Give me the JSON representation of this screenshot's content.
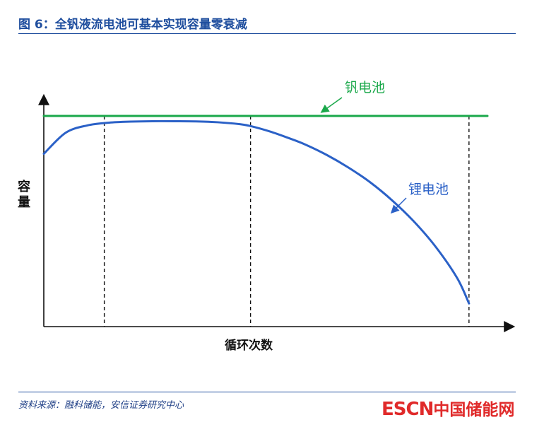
{
  "header": {
    "title": "图 6：全钒液流电池可基本实现容量零衰减"
  },
  "footer": {
    "source": "资料来源：融科储能，安信证券研究中心",
    "logo_en": "ESCN",
    "logo_cn": "中国储能网"
  },
  "colors": {
    "title": "#1f4e9e",
    "vanadium": "#1aa84a",
    "lithium": "#2b61c7",
    "logo": "#e02a2a"
  },
  "chart_data": {
    "type": "line",
    "title": "",
    "xlabel": "循环次数",
    "ylabel": "容量",
    "ticks_shown": false,
    "grid": false,
    "legend": "none",
    "x_markers": [
      0.139,
      0.475,
      0.977
    ],
    "xlim": [
      0,
      1
    ],
    "ylim": [
      0,
      1
    ],
    "series": [
      {
        "name": "钒电池",
        "color": "#1aa84a",
        "x": [
          0,
          1
        ],
        "y": [
          1.0,
          1.0
        ]
      },
      {
        "name": "锂电池",
        "color": "#2b61c7",
        "x": [
          0.0,
          0.05,
          0.1,
          0.15,
          0.2,
          0.25,
          0.3,
          0.35,
          0.4,
          0.45,
          0.475,
          0.52,
          0.56,
          0.6,
          0.65,
          0.7,
          0.75,
          0.8,
          0.85,
          0.9,
          0.95,
          0.977
        ],
        "y": [
          0.82,
          0.92,
          0.955,
          0.968,
          0.973,
          0.975,
          0.975,
          0.974,
          0.97,
          0.961,
          0.952,
          0.926,
          0.897,
          0.865,
          0.815,
          0.755,
          0.685,
          0.6,
          0.5,
          0.38,
          0.23,
          0.11
        ]
      }
    ],
    "annotations": [
      "钒电池",
      "锂电池"
    ]
  }
}
